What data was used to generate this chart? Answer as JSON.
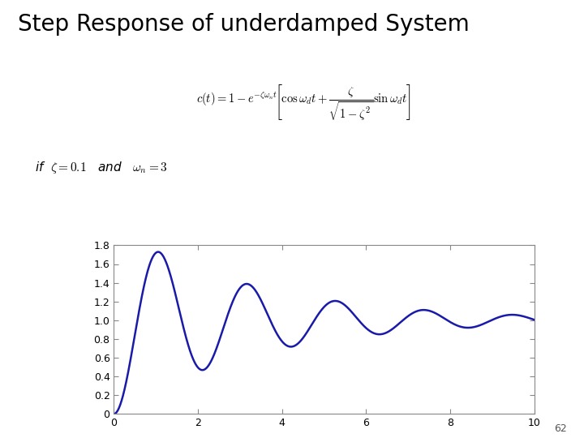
{
  "title": "Step Response of underdamped System",
  "zeta": 0.1,
  "omega_n": 3,
  "t_start": 0,
  "t_end": 10,
  "t_points": 3000,
  "line_color": "#1a1aaa",
  "line_width": 1.8,
  "xlim": [
    0,
    10
  ],
  "ylim": [
    0,
    1.8
  ],
  "yticks": [
    0,
    0.2,
    0.4,
    0.6,
    0.8,
    1,
    1.2,
    1.4,
    1.6,
    1.8
  ],
  "xticks": [
    0,
    2,
    4,
    6,
    8,
    10
  ],
  "title_fontsize": 20,
  "tick_fontsize": 9,
  "background_color": "#ffffff",
  "slide_number": "62",
  "formula_text": "$c(t) = 1 - e^{-\\zeta\\omega_n t}\\!\\left[\\cos\\omega_d t + \\dfrac{\\zeta}{\\sqrt{1-\\zeta^2}}\\sin \\omega_d t\\right]$",
  "condition_text": "if  $\\zeta = 0.1$   and   $\\omega_n = 3$"
}
